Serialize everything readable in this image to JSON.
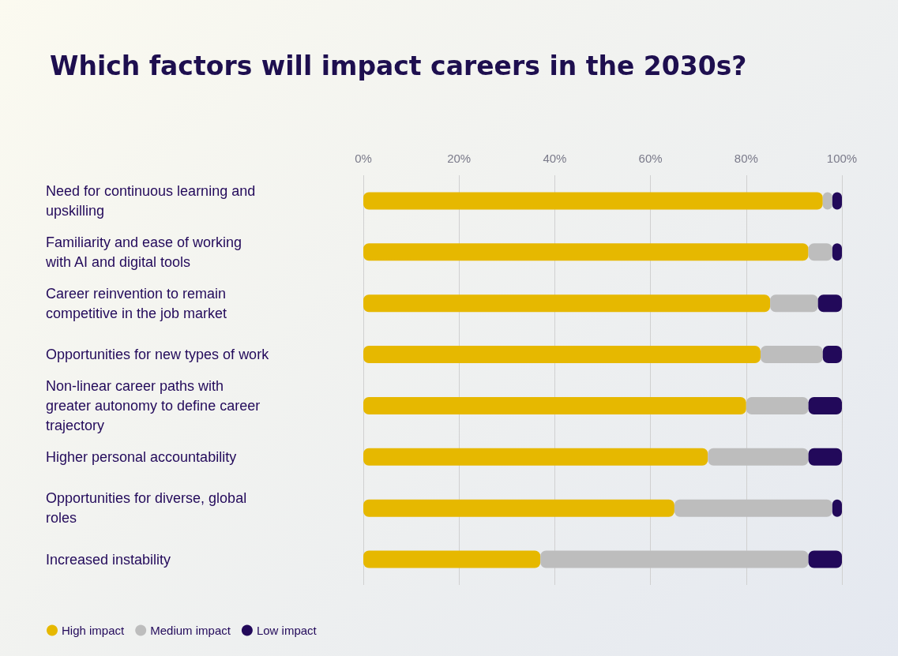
{
  "chart_data": {
    "type": "bar",
    "title": "Which factors will impact careers in the 2030s?",
    "orientation": "horizontal",
    "stacked": true,
    "categories": [
      "Need for continuous learning and upskilling",
      "Familiarity and ease of working with AI and digital tools",
      "Career reinvention to remain competitive in the job market",
      "Opportunities for new types of work",
      "Non-linear career paths with greater autonomy to define career trajectory",
      "Higher personal accountability",
      "Opportunities for diverse, global roles",
      "Increased instability"
    ],
    "series": [
      {
        "name": "High impact",
        "color": "#e6b800",
        "values": [
          96,
          93,
          85,
          83,
          80,
          72,
          65,
          37
        ]
      },
      {
        "name": "Medium impact",
        "color": "#bdbdbd",
        "values": [
          2,
          5,
          10,
          13,
          13,
          21,
          33,
          56
        ]
      },
      {
        "name": "Low impact",
        "color": "#22095a",
        "values": [
          2,
          2,
          5,
          4,
          7,
          7,
          2,
          7
        ]
      }
    ],
    "xlim": [
      0,
      100
    ],
    "xticks": [
      {
        "value": 0,
        "label": "0%"
      },
      {
        "value": 20,
        "label": "20%"
      },
      {
        "value": 40,
        "label": "40%"
      },
      {
        "value": 60,
        "label": "60%"
      },
      {
        "value": 80,
        "label": "80%"
      },
      {
        "value": 100,
        "label": "100%"
      }
    ],
    "grid": "x",
    "legend": "bottom left"
  }
}
